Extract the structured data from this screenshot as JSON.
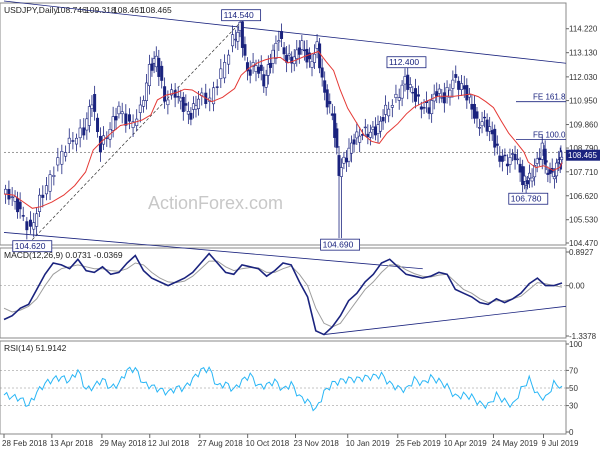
{
  "chart_data": [
    {
      "type": "candlestick",
      "header": {
        "symbol": "USDJPY,Daily",
        "values": [
          "108.746",
          "109.318",
          "108.461",
          "108.465"
        ]
      },
      "ylim": [
        104.47,
        115.3
      ],
      "y_ticks": [
        "114.220",
        "113.130",
        "112.030",
        "110.950",
        "109.860",
        "108.790",
        "107.710",
        "106.620",
        "105.530",
        "104.470"
      ],
      "current_price": "108.465",
      "x_ticks": [
        "28 Feb 2018",
        "13 Apr 2018",
        "29 May 2018",
        "12 Jul 2018",
        "27 Aug 2018",
        "10 Oct 2018",
        "23 Nov 2018",
        "10 Jan 2019",
        "25 Feb 2019",
        "10 Apr 2019",
        "24 May 2019",
        "9 Jul 2019"
      ],
      "annotations": [
        {
          "text": "114.540",
          "date": "2018-10-04",
          "price": 114.54
        },
        {
          "text": "112.400",
          "date": "2019-03-05",
          "price": 112.4
        },
        {
          "text": "106.780",
          "date": "2019-06-25",
          "price": 106.78
        },
        {
          "text": "104.690",
          "date": "2019-01-03",
          "price": 104.69
        },
        {
          "text": "104.620",
          "date": "2018-03-26",
          "price": 104.62
        }
      ],
      "fib_levels": [
        {
          "text": "FE 161.8",
          "price": 110.9
        },
        {
          "text": "FE 100.0",
          "price": 109.18
        }
      ],
      "watermark": "ActionForex.com",
      "close_series": [
        {
          "date": "2018-02-28",
          "close": 106.7
        },
        {
          "date": "2018-03-09",
          "close": 106.6
        },
        {
          "date": "2018-03-16",
          "close": 105.9
        },
        {
          "date": "2018-03-26",
          "close": 105.0
        },
        {
          "date": "2018-04-03",
          "close": 106.4
        },
        {
          "date": "2018-04-13",
          "close": 107.4
        },
        {
          "date": "2018-04-24",
          "close": 108.6
        },
        {
          "date": "2018-05-04",
          "close": 109.2
        },
        {
          "date": "2018-05-14",
          "close": 109.6
        },
        {
          "date": "2018-05-21",
          "close": 111.0
        },
        {
          "date": "2018-05-29",
          "close": 108.8
        },
        {
          "date": "2018-06-07",
          "close": 109.7
        },
        {
          "date": "2018-06-15",
          "close": 110.6
        },
        {
          "date": "2018-06-25",
          "close": 109.8
        },
        {
          "date": "2018-07-05",
          "close": 110.5
        },
        {
          "date": "2018-07-13",
          "close": 112.4
        },
        {
          "date": "2018-07-19",
          "close": 112.9
        },
        {
          "date": "2018-07-27",
          "close": 111.0
        },
        {
          "date": "2018-08-06",
          "close": 111.3
        },
        {
          "date": "2018-08-13",
          "close": 110.7
        },
        {
          "date": "2018-08-20",
          "close": 110.3
        },
        {
          "date": "2018-08-27",
          "close": 111.1
        },
        {
          "date": "2018-09-07",
          "close": 111.0
        },
        {
          "date": "2018-09-17",
          "close": 112.2
        },
        {
          "date": "2018-09-28",
          "close": 113.7
        },
        {
          "date": "2018-10-04",
          "close": 114.3
        },
        {
          "date": "2018-10-11",
          "close": 112.2
        },
        {
          "date": "2018-10-19",
          "close": 112.6
        },
        {
          "date": "2018-10-26",
          "close": 111.8
        },
        {
          "date": "2018-11-01",
          "close": 112.7
        },
        {
          "date": "2018-11-09",
          "close": 113.9
        },
        {
          "date": "2018-11-16",
          "close": 112.8
        },
        {
          "date": "2018-11-23",
          "close": 112.9
        },
        {
          "date": "2018-11-30",
          "close": 113.5
        },
        {
          "date": "2018-12-07",
          "close": 112.6
        },
        {
          "date": "2018-12-14",
          "close": 113.4
        },
        {
          "date": "2018-12-21",
          "close": 111.2
        },
        {
          "date": "2018-12-28",
          "close": 110.3
        },
        {
          "date": "2019-01-03",
          "close": 107.7
        },
        {
          "date": "2019-01-10",
          "close": 108.4
        },
        {
          "date": "2019-01-17",
          "close": 109.2
        },
        {
          "date": "2019-01-25",
          "close": 109.5
        },
        {
          "date": "2019-02-01",
          "close": 109.5
        },
        {
          "date": "2019-02-08",
          "close": 109.7
        },
        {
          "date": "2019-02-15",
          "close": 110.5
        },
        {
          "date": "2019-02-25",
          "close": 111.0
        },
        {
          "date": "2019-03-05",
          "close": 111.9
        },
        {
          "date": "2019-03-12",
          "close": 111.3
        },
        {
          "date": "2019-03-20",
          "close": 110.7
        },
        {
          "date": "2019-03-27",
          "close": 110.6
        },
        {
          "date": "2019-04-03",
          "close": 111.4
        },
        {
          "date": "2019-04-10",
          "close": 111.0
        },
        {
          "date": "2019-04-18",
          "close": 111.9
        },
        {
          "date": "2019-04-26",
          "close": 111.6
        },
        {
          "date": "2019-05-03",
          "close": 111.0
        },
        {
          "date": "2019-05-10",
          "close": 109.9
        },
        {
          "date": "2019-05-17",
          "close": 110.0
        },
        {
          "date": "2019-05-24",
          "close": 109.4
        },
        {
          "date": "2019-05-31",
          "close": 108.3
        },
        {
          "date": "2019-06-07",
          "close": 108.2
        },
        {
          "date": "2019-06-14",
          "close": 108.5
        },
        {
          "date": "2019-06-21",
          "close": 107.3
        },
        {
          "date": "2019-06-25",
          "close": 107.2
        },
        {
          "date": "2019-07-02",
          "close": 107.9
        },
        {
          "date": "2019-07-09",
          "close": 108.8
        },
        {
          "date": "2019-07-12",
          "close": 107.9
        },
        {
          "date": "2019-07-18",
          "close": 107.5
        },
        {
          "date": "2019-07-24",
          "close": 108.2
        },
        {
          "date": "2019-07-26",
          "close": 108.465
        }
      ]
    },
    {
      "type": "line",
      "header": "MACD(12,26,9) 0.0731 -0.0369",
      "ylim": [
        -1.3378,
        0.8927
      ],
      "y_ticks": [
        "0.8927",
        "0.00",
        "-1.3378"
      ],
      "series": [
        {
          "values": [
            -0.9,
            -0.8,
            -0.6,
            -0.5,
            -0.1,
            0.3,
            0.6,
            0.55,
            0.45,
            0.7,
            0.4,
            0.35,
            0.5,
            0.3,
            0.35,
            0.6,
            0.8,
            0.4,
            0.2,
            0.1,
            0.0,
            0.1,
            0.2,
            0.35,
            0.6,
            0.85,
            0.6,
            0.35,
            0.3,
            0.55,
            0.5,
            0.45,
            0.25,
            0.4,
            0.6,
            0.55,
            0.1,
            -0.3,
            -1.2,
            -1.3,
            -1.1,
            -0.8,
            -0.4,
            -0.2,
            0.1,
            0.3,
            0.6,
            0.7,
            0.5,
            0.3,
            0.25,
            0.2,
            0.25,
            0.35,
            0.3,
            -0.1,
            -0.2,
            -0.3,
            -0.45,
            -0.5,
            -0.35,
            -0.45,
            -0.35,
            -0.2,
            0.05,
            0.2,
            0.0,
            0.0,
            0.07
          ]
        },
        {
          "values": [
            -0.6,
            -0.7,
            -0.65,
            -0.55,
            -0.35,
            0.0,
            0.3,
            0.45,
            0.5,
            0.55,
            0.5,
            0.45,
            0.45,
            0.4,
            0.38,
            0.45,
            0.6,
            0.55,
            0.35,
            0.2,
            0.1,
            0.08,
            0.12,
            0.25,
            0.45,
            0.65,
            0.65,
            0.5,
            0.4,
            0.45,
            0.48,
            0.47,
            0.35,
            0.35,
            0.45,
            0.52,
            0.3,
            0.0,
            -0.6,
            -1.0,
            -1.1,
            -1.0,
            -0.7,
            -0.4,
            -0.1,
            0.1,
            0.35,
            0.55,
            0.55,
            0.42,
            0.32,
            0.25,
            0.23,
            0.28,
            0.3,
            0.1,
            -0.1,
            -0.2,
            -0.35,
            -0.45,
            -0.4,
            -0.4,
            -0.35,
            -0.28,
            -0.1,
            0.08,
            0.05,
            0.0,
            -0.04
          ]
        }
      ],
      "trendline": [
        [
          -1.3,
          -0.55
        ]
      ]
    },
    {
      "type": "line",
      "header": "RSI(14) 51.9142",
      "ylim": [
        0,
        100
      ],
      "y_ticks": [
        "100",
        "70",
        "50",
        "30",
        "0"
      ],
      "series": [
        {
          "values": [
            42,
            40,
            38,
            30,
            45,
            55,
            60,
            62,
            58,
            70,
            48,
            52,
            60,
            50,
            55,
            70,
            72,
            55,
            52,
            48,
            45,
            50,
            50,
            60,
            70,
            72,
            52,
            55,
            48,
            58,
            65,
            52,
            53,
            58,
            48,
            55,
            40,
            35,
            25,
            45,
            55,
            58,
            60,
            60,
            62,
            63,
            65,
            55,
            50,
            48,
            60,
            55,
            62,
            58,
            52,
            40,
            42,
            40,
            32,
            30,
            42,
            35,
            30,
            48,
            60,
            42,
            38,
            55,
            52
          ]
        }
      ]
    }
  ]
}
